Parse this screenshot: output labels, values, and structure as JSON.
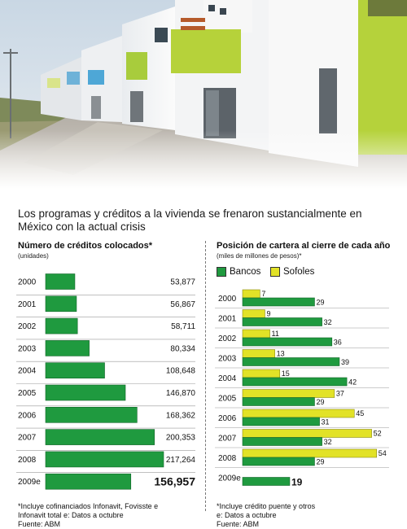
{
  "headline": "Los programas y créditos a la vivienda se frenaron sustancialmente en México con la actual crisis",
  "colors": {
    "green": "#1f9a3f",
    "yellow": "#e2e227",
    "separator": "#9a9a9a"
  },
  "chart_data": [
    {
      "type": "bar",
      "orientation": "horizontal",
      "title": "Número de créditos colocados*",
      "subtitle": "(unidades)",
      "categories": [
        "2000",
        "2001",
        "2002",
        "2003",
        "2004",
        "2005",
        "2006",
        "2007",
        "2008",
        "2009e"
      ],
      "values": [
        53877,
        56867,
        58711,
        80334,
        108648,
        146870,
        168362,
        200353,
        217264,
        156957
      ],
      "value_labels": [
        "53,877",
        "56,867",
        "58,711",
        "80,334",
        "108,648",
        "146,870",
        "168,362",
        "200,353",
        "217,264",
        "156,957"
      ],
      "color": "#1f9a3f",
      "grid": false,
      "footnote": [
        "*Incluye cofinanciados Infonavit, Fovisste e",
        "Infonavit total e: Datos a octubre",
        "Fuente: ABM"
      ]
    },
    {
      "type": "bar",
      "orientation": "horizontal",
      "title": "Posición de cartera al cierre de cada año",
      "subtitle": "(miles de millones de pesos)*",
      "categories": [
        "2000",
        "2001",
        "2002",
        "2003",
        "2004",
        "2005",
        "2006",
        "2007",
        "2008",
        "2009e"
      ],
      "series": [
        {
          "name": "Bancos",
          "color": "#1f9a3f",
          "values": [
            29,
            32,
            36,
            39,
            42,
            29,
            31,
            32,
            29,
            19
          ]
        },
        {
          "name": "Sofoles",
          "color": "#e2e227",
          "values": [
            7,
            9,
            11,
            13,
            15,
            37,
            45,
            52,
            54,
            null
          ]
        }
      ],
      "legend": "top-left",
      "grid": false,
      "footnote": [
        "*Incluye crédito puente y otros",
        "e: Datos a octubre",
        "Fuente: ABM"
      ]
    }
  ]
}
